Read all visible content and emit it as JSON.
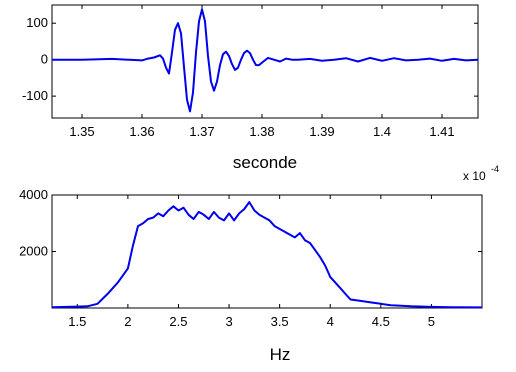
{
  "chart_data": [
    {
      "type": "line",
      "title": "",
      "xlabel": "seconde",
      "ylabel": "",
      "xlim": [
        0.0001345,
        0.0001416
      ],
      "ylim": [
        -160,
        150
      ],
      "x_ticks": [
        0.000135,
        0.000136,
        0.000137,
        0.000138,
        0.000139,
        0.00014,
        0.000141
      ],
      "x_tick_labels": [
        "1.35",
        "1.36",
        "1.37",
        "1.38",
        "1.39",
        "1.4",
        "1.41"
      ],
      "y_ticks": [
        -100,
        0,
        100
      ],
      "y_tick_labels": [
        "-100",
        "0",
        "100"
      ],
      "axis_multiplier": {
        "base": "x 10",
        "exponent": "-4"
      },
      "grid": false,
      "series": [
        {
          "color": "#0000ee",
          "points": [
            [
              0.0001345,
              0
            ],
            [
              0.000135,
              0
            ],
            [
              0.0001355,
              2
            ],
            [
              0.000136,
              -2
            ],
            [
              0.0001361,
              3
            ],
            [
              0.0001362,
              6
            ],
            [
              0.0001363,
              12
            ],
            [
              0.00013635,
              3
            ],
            [
              0.0001364,
              -22
            ],
            [
              0.00013645,
              -38
            ],
            [
              0.0001365,
              20
            ],
            [
              0.00013655,
              82
            ],
            [
              0.0001366,
              100
            ],
            [
              0.00013665,
              72
            ],
            [
              0.0001367,
              -20
            ],
            [
              0.00013675,
              -110
            ],
            [
              0.0001368,
              -142
            ],
            [
              0.00013685,
              -90
            ],
            [
              0.0001369,
              20
            ],
            [
              0.00013695,
              105
            ],
            [
              0.000137,
              138
            ],
            [
              0.00013705,
              105
            ],
            [
              0.0001371,
              10
            ],
            [
              0.00013715,
              -60
            ],
            [
              0.0001372,
              -85
            ],
            [
              0.00013725,
              -60
            ],
            [
              0.0001373,
              -15
            ],
            [
              0.00013735,
              15
            ],
            [
              0.0001374,
              22
            ],
            [
              0.00013745,
              10
            ],
            [
              0.0001375,
              -12
            ],
            [
              0.00013755,
              -28
            ],
            [
              0.0001376,
              -22
            ],
            [
              0.00013765,
              0
            ],
            [
              0.0001377,
              18
            ],
            [
              0.00013775,
              25
            ],
            [
              0.0001378,
              18
            ],
            [
              0.00013785,
              0
            ],
            [
              0.0001379,
              -15
            ],
            [
              0.00013795,
              -15
            ],
            [
              0.000138,
              -8
            ],
            [
              0.0001381,
              5
            ],
            [
              0.0001382,
              0
            ],
            [
              0.0001383,
              -5
            ],
            [
              0.0001384,
              3
            ],
            [
              0.0001385,
              0
            ],
            [
              0.0001386,
              0
            ],
            [
              0.0001388,
              2
            ],
            [
              0.000139,
              -3
            ],
            [
              0.0001392,
              0
            ],
            [
              0.0001394,
              4
            ],
            [
              0.0001396,
              -5
            ],
            [
              0.0001398,
              5
            ],
            [
              0.00014,
              -3
            ],
            [
              0.0001402,
              4
            ],
            [
              0.0001404,
              -2
            ],
            [
              0.0001406,
              0
            ],
            [
              0.0001408,
              3
            ],
            [
              0.000141,
              -3
            ],
            [
              0.0001412,
              2
            ],
            [
              0.0001414,
              -2
            ],
            [
              0.0001416,
              0
            ]
          ]
        }
      ]
    },
    {
      "type": "line",
      "title": "",
      "xlabel": "Hz",
      "ylabel": "",
      "xlim": [
        1.25,
        5.5
      ],
      "ylim": [
        0,
        4000
      ],
      "x_ticks": [
        1.5,
        2,
        2.5,
        3,
        3.5,
        4,
        4.5,
        5
      ],
      "x_tick_labels": [
        "1.5",
        "2",
        "2.5",
        "3",
        "3.5",
        "4",
        "4.5",
        "5"
      ],
      "y_ticks": [
        2000,
        4000
      ],
      "y_tick_labels": [
        "2000",
        "4000"
      ],
      "grid": false,
      "series": [
        {
          "color": "#0000ee",
          "points": [
            [
              1.25,
              30
            ],
            [
              1.4,
              40
            ],
            [
              1.5,
              50
            ],
            [
              1.6,
              60
            ],
            [
              1.7,
              150
            ],
            [
              1.8,
              500
            ],
            [
              1.9,
              900
            ],
            [
              2.0,
              1400
            ],
            [
              2.05,
              2200
            ],
            [
              2.1,
              2900
            ],
            [
              2.15,
              3000
            ],
            [
              2.2,
              3150
            ],
            [
              2.25,
              3200
            ],
            [
              2.3,
              3350
            ],
            [
              2.35,
              3250
            ],
            [
              2.4,
              3450
            ],
            [
              2.45,
              3600
            ],
            [
              2.5,
              3450
            ],
            [
              2.55,
              3550
            ],
            [
              2.6,
              3300
            ],
            [
              2.65,
              3150
            ],
            [
              2.7,
              3400
            ],
            [
              2.75,
              3300
            ],
            [
              2.8,
              3150
            ],
            [
              2.85,
              3400
            ],
            [
              2.9,
              3200
            ],
            [
              2.95,
              3100
            ],
            [
              3.0,
              3350
            ],
            [
              3.05,
              3100
            ],
            [
              3.1,
              3350
            ],
            [
              3.15,
              3500
            ],
            [
              3.2,
              3750
            ],
            [
              3.25,
              3450
            ],
            [
              3.3,
              3300
            ],
            [
              3.35,
              3200
            ],
            [
              3.4,
              3100
            ],
            [
              3.45,
              2900
            ],
            [
              3.5,
              2800
            ],
            [
              3.55,
              2700
            ],
            [
              3.6,
              2600
            ],
            [
              3.65,
              2500
            ],
            [
              3.7,
              2650
            ],
            [
              3.75,
              2400
            ],
            [
              3.8,
              2300
            ],
            [
              3.85,
              2050
            ],
            [
              3.9,
              1800
            ],
            [
              3.95,
              1500
            ],
            [
              4.0,
              1100
            ],
            [
              4.05,
              900
            ],
            [
              4.1,
              700
            ],
            [
              4.15,
              500
            ],
            [
              4.2,
              300
            ],
            [
              4.3,
              250
            ],
            [
              4.4,
              200
            ],
            [
              4.5,
              150
            ],
            [
              4.6,
              100
            ],
            [
              4.8,
              60
            ],
            [
              5.0,
              40
            ],
            [
              5.2,
              30
            ],
            [
              5.5,
              20
            ]
          ]
        }
      ]
    }
  ]
}
